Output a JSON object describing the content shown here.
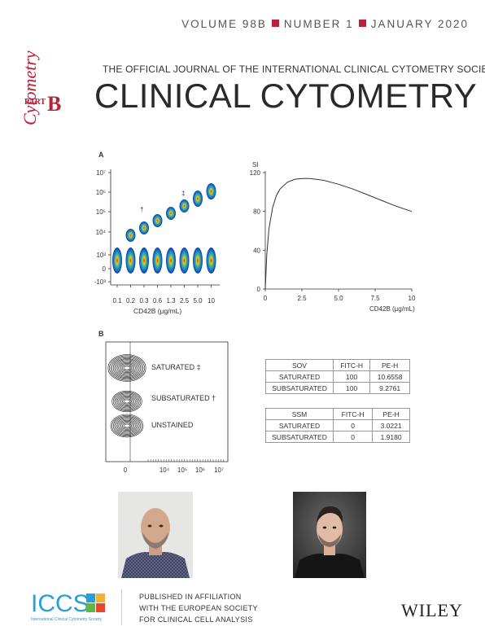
{
  "header": {
    "volume": "VOLUME 98B",
    "number": "NUMBER 1",
    "date": "JANUARY 2020",
    "logo_word": "Cytometry",
    "logo_part": "PART",
    "logo_letter": "B",
    "society_line": "THE OFFICIAL JOURNAL OF THE INTERNATIONAL CLINICAL CYTOMETRY SOCIETY",
    "journal_title": "CLINICAL CYTOMETRY"
  },
  "figure": {
    "panel_a": "A",
    "panel_b": "B",
    "dot_yticks": [
      "10⁷",
      "10⁶",
      "10⁵",
      "10⁴",
      "10³",
      "0",
      "-10³"
    ],
    "dot_xticks": [
      "0.1",
      "0.2",
      "0.3",
      "0.6",
      "1.3",
      "2.5",
      "5.0",
      "10"
    ],
    "dot_xlabel": "CD42B (µg/mL)",
    "dagger": "†",
    "ddagger": "‡",
    "populations": [
      "SATURATED ‡",
      "SUBSATURATED †",
      "UNSTAINED"
    ],
    "hist_xticks": [
      "0",
      "10⁴",
      "10⁵",
      "10⁶",
      "10⁷"
    ]
  },
  "chart_data": {
    "type": "line",
    "ylabel": "SI",
    "xlabel": "CD42B (µg/mL)",
    "xlim": [
      0,
      10
    ],
    "ylim": [
      0,
      120
    ],
    "xticks": [
      "0",
      "2.5",
      "5.0",
      "7.5",
      "10"
    ],
    "yticks": [
      "0",
      "40",
      "80",
      "120"
    ],
    "x": [
      0,
      0.1,
      0.25,
      0.5,
      0.75,
      1.0,
      1.5,
      2.0,
      2.5,
      3.0,
      3.5,
      4.0,
      5.0,
      6.0,
      7.0,
      8.0,
      9.0,
      10.0
    ],
    "y": [
      0,
      35,
      62,
      84,
      96,
      103,
      110,
      113,
      114,
      114,
      113,
      112,
      108,
      103,
      97,
      91,
      85,
      80
    ]
  },
  "tables": [
    {
      "headers": [
        "SOV",
        "FITC-H",
        "PE-H"
      ],
      "rows": [
        [
          "SATURATED",
          "100",
          "10.6558"
        ],
        [
          "SUBSATURATED",
          "100",
          "9.2761"
        ]
      ]
    },
    {
      "headers": [
        "SSM",
        "FITC-H",
        "PE-H"
      ],
      "rows": [
        [
          "SATURATED",
          "0",
          "3.0221"
        ],
        [
          "SUBSATURATED",
          "0",
          "1.9180"
        ]
      ]
    }
  ],
  "footer": {
    "iccs_logo": "ICCS",
    "iccs_sub": "International Clinical Cytometry Society",
    "published_lines": [
      "PUBLISHED IN AFFILIATION",
      "WITH THE EUROPEAN SOCIETY",
      "FOR CLINICAL CELL ANALYSIS"
    ],
    "publisher": "WILEY"
  }
}
